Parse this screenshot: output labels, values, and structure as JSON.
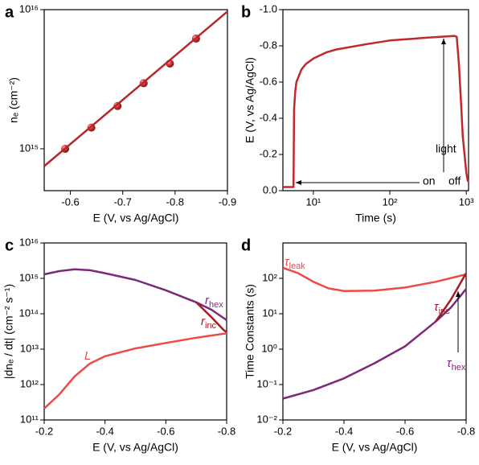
{
  "chart_data": [
    {
      "type": "scatter",
      "panel_label": "a",
      "x_label": "E (V, vs Ag/AgCl)",
      "y_label": "nₑ (cm⁻²)",
      "xlim": [
        -0.55,
        -0.9
      ],
      "ylim": [
        500000000000000.0,
        1e+16
      ],
      "log_y": true,
      "xticks": [
        -0.6,
        -0.7,
        -0.8,
        -0.9
      ],
      "yticks": [
        {
          "value": 1000000000000000.0,
          "label": "10¹⁵"
        },
        {
          "value": 1e+16,
          "label": "10¹⁶"
        }
      ],
      "series": [
        {
          "mode": "markers",
          "color": "#c0282c",
          "x": [
            -0.59,
            -0.64,
            -0.69,
            -0.74,
            -0.79,
            -0.84
          ],
          "values": [
            1000000000000000.0,
            1420000000000000.0,
            2030000000000000.0,
            2960000000000000.0,
            4100000000000000.0,
            6200000000000000.0
          ]
        },
        {
          "mode": "line",
          "color": "#b5282a",
          "x": [
            -0.55,
            -0.9
          ],
          "values": [
            750000000000000.0,
            9700000000000000.0
          ]
        }
      ]
    },
    {
      "type": "line",
      "panel_label": "b",
      "x_label": "Time (s)",
      "y_label": "E (V, vs Ag/AgCl)",
      "xlim": [
        4,
        1070
      ],
      "ylim": [
        0,
        -1.0
      ],
      "log_x": true,
      "xticks": [
        {
          "value": 10,
          "label": "10¹"
        },
        {
          "value": 100,
          "label": "10²"
        },
        {
          "value": 1000,
          "label": "10³"
        }
      ],
      "yticks": [
        {
          "value": 0,
          "label": "0.0"
        },
        -0.2,
        -0.4,
        -0.6,
        -0.8,
        {
          "value": -1.0,
          "label": "-1.0"
        }
      ],
      "annotations": [
        "light",
        "on",
        "off"
      ],
      "series": [
        {
          "mode": "line",
          "color": "#c0282c",
          "x": [
            4,
            5.5,
            5.6,
            5.8,
            6,
            7,
            8,
            10,
            15,
            20,
            50,
            100,
            300,
            700,
            750,
            800,
            850,
            900,
            1000,
            1050
          ],
          "values": [
            -0.02,
            -0.02,
            -0.45,
            -0.55,
            -0.6,
            -0.67,
            -0.7,
            -0.73,
            -0.765,
            -0.78,
            -0.81,
            -0.83,
            -0.845,
            -0.855,
            -0.85,
            -0.7,
            -0.5,
            -0.3,
            -0.1,
            -0.05
          ]
        }
      ]
    },
    {
      "type": "line",
      "panel_label": "c",
      "x_label": "E (V, vs Ag/AgCl)",
      "y_label": "|dnₑ / dt| (cm⁻² s⁻¹)",
      "xlim": [
        -0.2,
        -0.8
      ],
      "ylim": [
        100000000000.0,
        1e+16
      ],
      "log_y": true,
      "xticks": [
        -0.2,
        -0.4,
        -0.6,
        -0.8
      ],
      "yticks": [
        {
          "value": 100000000000.0,
          "label": "10¹¹"
        },
        {
          "value": 1000000000000.0,
          "label": "10¹²"
        },
        {
          "value": 10000000000000.0,
          "label": "10¹³"
        },
        {
          "value": 100000000000000.0,
          "label": "10¹⁴"
        },
        {
          "value": 1000000000000000.0,
          "label": "10¹⁵"
        },
        {
          "value": 1e+16,
          "label": "10¹⁶"
        }
      ],
      "series": [
        {
          "name": "r",
          "subscript": "hex",
          "color": "#7b2a7a",
          "x": [
            -0.2,
            -0.25,
            -0.3,
            -0.35,
            -0.4,
            -0.5,
            -0.6,
            -0.7,
            -0.75,
            -0.8
          ],
          "values": [
            1300000000000000.0,
            1600000000000000.0,
            1800000000000000.0,
            1700000000000000.0,
            1400000000000000.0,
            900000000000000.0,
            460000000000000.0,
            210000000000000.0,
            130000000000000.0,
            66000000000000.0
          ]
        },
        {
          "name": "r",
          "subscript": "inc",
          "color": "#a51c24",
          "x": [
            -0.7,
            -0.75,
            -0.79,
            -0.8
          ],
          "values": [
            210000000000000.0,
            80000000000000.0,
            35000000000000.0,
            30000000000000.0
          ]
        },
        {
          "name": "L",
          "color": "#ee4a45",
          "x": [
            -0.2,
            -0.25,
            -0.3,
            -0.35,
            -0.4,
            -0.5,
            -0.6,
            -0.7,
            -0.8
          ],
          "values": [
            210000000000.0,
            530000000000.0,
            1700000000000.0,
            3900000000000.0,
            6300000000000.0,
            10500000000000.0,
            15000000000000.0,
            21000000000000.0,
            28000000000000.0
          ]
        }
      ]
    },
    {
      "type": "line",
      "panel_label": "d",
      "x_label": "E (V, vs Ag/AgCl)",
      "y_label": "Time Constants (s)",
      "xlim": [
        -0.2,
        -0.8
      ],
      "ylim": [
        0.01,
        1000
      ],
      "log_y": true,
      "xticks": [
        -0.2,
        -0.4,
        -0.6,
        -0.8
      ],
      "yticks": [
        {
          "value": 0.01,
          "label": "10⁻²"
        },
        {
          "value": 0.1,
          "label": "10⁻¹"
        },
        {
          "value": 1,
          "label": "10⁰"
        },
        {
          "value": 10,
          "label": "10¹"
        },
        {
          "value": 100,
          "label": "10²"
        }
      ],
      "series": [
        {
          "name": "τ",
          "subscript": "leak",
          "color": "#ee4a45",
          "x": [
            -0.2,
            -0.25,
            -0.3,
            -0.35,
            -0.4,
            -0.5,
            -0.6,
            -0.7,
            -0.8
          ],
          "values": [
            200,
            140,
            80,
            52,
            44,
            45,
            55,
            80,
            130
          ]
        },
        {
          "name": "τ",
          "subscript": "hex",
          "color": "#7b2a7a",
          "x": [
            -0.2,
            -0.3,
            -0.4,
            -0.5,
            -0.6,
            -0.7,
            -0.75,
            -0.8
          ],
          "values": [
            0.04,
            0.07,
            0.15,
            0.4,
            1.2,
            6,
            15,
            50
          ]
        },
        {
          "name": "τ",
          "subscript": "inc",
          "color": "#a51c24",
          "x": [
            -0.7,
            -0.75,
            -0.8
          ],
          "values": [
            6,
            25,
            140
          ]
        }
      ]
    }
  ]
}
